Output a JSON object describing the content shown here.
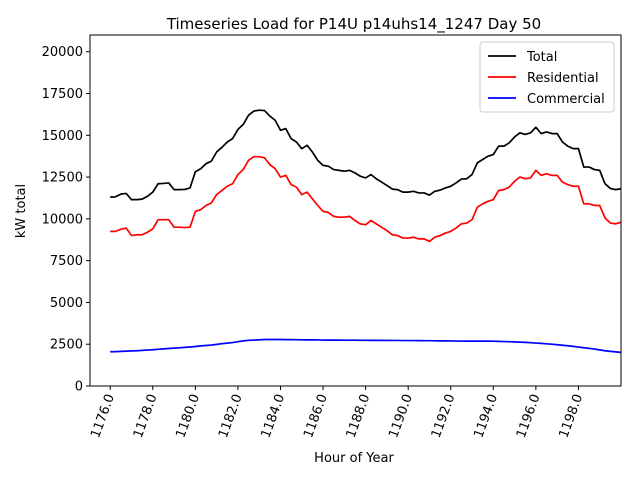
{
  "chart_data": {
    "type": "line",
    "title": "Timeseries Load for P14U p14uhs14_1247  Day 50",
    "xlabel": "Hour of Year",
    "ylabel": "kW total",
    "xlim": [
      1175.05,
      1200.0
    ],
    "ylim": [
      0,
      21000
    ],
    "x_start": 1176.0,
    "x_step": 0.25,
    "xticks": [
      1176.0,
      1178.0,
      1180.0,
      1182.0,
      1184.0,
      1186.0,
      1188.0,
      1190.0,
      1192.0,
      1194.0,
      1196.0,
      1198.0
    ],
    "xtick_labels": [
      "1176.0",
      "1178.0",
      "1180.0",
      "1182.0",
      "1184.0",
      "1186.0",
      "1188.0",
      "1190.0",
      "1192.0",
      "1194.0",
      "1196.0",
      "1198.0"
    ],
    "yticks": [
      0,
      2500,
      5000,
      7500,
      10000,
      12500,
      15000,
      17500,
      20000
    ],
    "ytick_labels": [
      "0",
      "2500",
      "5000",
      "7500",
      "10000",
      "12500",
      "15000",
      "17500",
      "20000"
    ],
    "legend_position": "top-right",
    "series": [
      {
        "name": "Total",
        "color": "#000000",
        "values": [
          11300,
          11320,
          11480,
          11520,
          11150,
          11150,
          11180,
          11350,
          11600,
          12100,
          12120,
          12150,
          11750,
          11750,
          11760,
          11850,
          12820,
          13000,
          13300,
          13450,
          14000,
          14280,
          14600,
          14800,
          15350,
          15650,
          16200,
          16450,
          16500,
          16480,
          16150,
          15900,
          15300,
          15400,
          14800,
          14600,
          14200,
          14400,
          14000,
          13500,
          13200,
          13150,
          12950,
          12900,
          12850,
          12900,
          12750,
          12550,
          12450,
          12650,
          12400,
          12200,
          12000,
          11780,
          11750,
          11600,
          11600,
          11650,
          11550,
          11550,
          11420,
          11650,
          11720,
          11850,
          11950,
          12150,
          12380,
          12400,
          12650,
          13350,
          13550,
          13750,
          13850,
          14350,
          14350,
          14550,
          14900,
          15150,
          15050,
          15150,
          15480,
          15100,
          15200,
          15100,
          15100,
          14600,
          14350,
          14200,
          14200,
          13100,
          13100,
          12950,
          12900,
          12100,
          11820,
          11750,
          11800
        ]
      },
      {
        "name": "Residential",
        "color": "#ff0000",
        "values": [
          9250,
          9250,
          9380,
          9450,
          9000,
          9050,
          9050,
          9200,
          9400,
          9950,
          9950,
          9950,
          9500,
          9500,
          9480,
          9500,
          10450,
          10550,
          10800,
          10950,
          11450,
          11700,
          11950,
          12100,
          12650,
          12950,
          13500,
          13720,
          13720,
          13650,
          13250,
          13000,
          12500,
          12600,
          12050,
          11900,
          11450,
          11600,
          11200,
          10800,
          10450,
          10380,
          10150,
          10100,
          10100,
          10150,
          9900,
          9700,
          9650,
          9900,
          9700,
          9500,
          9300,
          9050,
          9000,
          8850,
          8850,
          8900,
          8800,
          8800,
          8650,
          8900,
          9000,
          9150,
          9250,
          9450,
          9700,
          9750,
          9950,
          10700,
          10900,
          11050,
          11150,
          11700,
          11750,
          11900,
          12250,
          12500,
          12400,
          12450,
          12900,
          12600,
          12700,
          12600,
          12600,
          12200,
          12050,
          11950,
          11950,
          10900,
          10900,
          10800,
          10800,
          10050,
          9750,
          9700,
          9800
        ]
      },
      {
        "name": "Commercial",
        "color": "#0000ff",
        "values": [
          2050,
          2055,
          2070,
          2085,
          2100,
          2110,
          2130,
          2150,
          2170,
          2195,
          2220,
          2245,
          2265,
          2285,
          2310,
          2335,
          2365,
          2400,
          2425,
          2450,
          2490,
          2530,
          2565,
          2600,
          2650,
          2700,
          2735,
          2750,
          2760,
          2780,
          2780,
          2780,
          2780,
          2775,
          2775,
          2770,
          2765,
          2760,
          2760,
          2755,
          2750,
          2745,
          2745,
          2745,
          2740,
          2740,
          2740,
          2735,
          2735,
          2730,
          2730,
          2730,
          2725,
          2725,
          2725,
          2720,
          2720,
          2720,
          2715,
          2710,
          2710,
          2705,
          2700,
          2700,
          2695,
          2690,
          2690,
          2685,
          2685,
          2685,
          2685,
          2685,
          2680,
          2670,
          2660,
          2650,
          2640,
          2625,
          2610,
          2590,
          2570,
          2550,
          2525,
          2500,
          2470,
          2440,
          2410,
          2370,
          2330,
          2290,
          2250,
          2210,
          2160,
          2110,
          2070,
          2040,
          2010
        ]
      }
    ]
  }
}
